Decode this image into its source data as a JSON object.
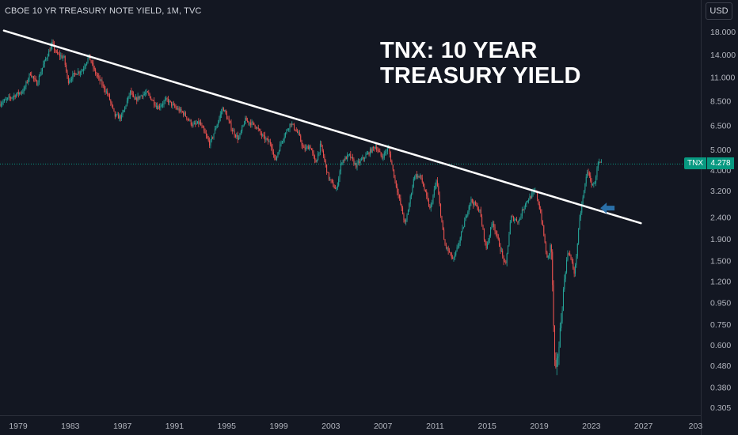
{
  "header": {
    "title": "CBOE 10 YR TREASURY NOTE YIELD, 1M, TVC"
  },
  "currency": "USD",
  "annotation": {
    "line1": "TNX: 10 YEAR",
    "line2": "TREASURY YIELD"
  },
  "ticker": "TNX",
  "last_price": "4.278",
  "colors": {
    "background": "#131722",
    "up": "#26a69a",
    "down": "#ef5350",
    "trendline": "#ffffff",
    "arrow": "#2a6fa8",
    "price_tag": "#089981",
    "axis_text": "#b2b5be"
  },
  "chart_data": {
    "type": "candlestick",
    "y_scale": "log",
    "xlim": [
      1977.6,
      2031.4
    ],
    "ylim": [
      0.28,
      21
    ],
    "x_ticks": [
      "1979",
      "1983",
      "1987",
      "1991",
      "1995",
      "1999",
      "2003",
      "2007",
      "2011",
      "2015",
      "2019",
      "2023",
      "2027",
      "203"
    ],
    "y_ticks": [
      "18.000",
      "14.000",
      "11.000",
      "8.500",
      "6.500",
      "5.000",
      "4.000",
      "3.200",
      "2.400",
      "1.900",
      "1.500",
      "1.200",
      "0.950",
      "0.750",
      "0.600",
      "0.480",
      "0.380",
      "0.305"
    ],
    "series": [
      {
        "values": [
          [
            1977.6,
            8.2
          ],
          [
            1978.5,
            8.8
          ],
          [
            1979.5,
            9.5
          ],
          [
            1980.0,
            11.5
          ],
          [
            1980.5,
            10.2
          ],
          [
            1981.0,
            12.5
          ],
          [
            1981.7,
            15.8
          ],
          [
            1982.0,
            14.2
          ],
          [
            1982.6,
            13.5
          ],
          [
            1982.9,
            10.5
          ],
          [
            1983.5,
            11.5
          ],
          [
            1984.0,
            11.8
          ],
          [
            1984.5,
            13.8
          ],
          [
            1985.0,
            11.5
          ],
          [
            1985.5,
            10.2
          ],
          [
            1986.0,
            9.0
          ],
          [
            1986.5,
            7.2
          ],
          [
            1987.0,
            7.1
          ],
          [
            1987.7,
            9.4
          ],
          [
            1988.0,
            8.5
          ],
          [
            1988.6,
            9.1
          ],
          [
            1989.0,
            9.2
          ],
          [
            1989.8,
            7.9
          ],
          [
            1990.5,
            8.6
          ],
          [
            1991.0,
            8.0
          ],
          [
            1991.8,
            7.4
          ],
          [
            1992.5,
            6.5
          ],
          [
            1993.0,
            6.7
          ],
          [
            1993.8,
            5.3
          ],
          [
            1994.8,
            7.9
          ],
          [
            1995.5,
            6.2
          ],
          [
            1996.0,
            5.6
          ],
          [
            1996.5,
            6.9
          ],
          [
            1997.3,
            6.5
          ],
          [
            1997.8,
            5.8
          ],
          [
            1998.5,
            5.3
          ],
          [
            1998.8,
            4.4
          ],
          [
            1999.3,
            5.5
          ],
          [
            2000.0,
            6.7
          ],
          [
            2000.6,
            5.9
          ],
          [
            2001.0,
            5.0
          ],
          [
            2001.5,
            5.2
          ],
          [
            2001.9,
            4.3
          ],
          [
            2002.3,
            5.3
          ],
          [
            2002.9,
            3.7
          ],
          [
            2003.5,
            3.2
          ],
          [
            2003.9,
            4.4
          ],
          [
            2004.5,
            4.7
          ],
          [
            2005.0,
            4.2
          ],
          [
            2005.5,
            4.5
          ],
          [
            2006.5,
            5.2
          ],
          [
            2007.0,
            4.6
          ],
          [
            2007.5,
            5.1
          ],
          [
            2008.0,
            3.6
          ],
          [
            2008.8,
            2.2
          ],
          [
            2009.5,
            3.8
          ],
          [
            2010.0,
            3.7
          ],
          [
            2010.7,
            2.6
          ],
          [
            2011.2,
            3.6
          ],
          [
            2011.8,
            1.8
          ],
          [
            2012.5,
            1.5
          ],
          [
            2013.0,
            1.9
          ],
          [
            2013.8,
            2.9
          ],
          [
            2014.5,
            2.6
          ],
          [
            2015.0,
            1.7
          ],
          [
            2015.5,
            2.3
          ],
          [
            2016.5,
            1.4
          ],
          [
            2016.9,
            2.4
          ],
          [
            2017.5,
            2.3
          ],
          [
            2018.0,
            2.8
          ],
          [
            2018.8,
            3.2
          ],
          [
            2019.2,
            2.5
          ],
          [
            2019.7,
            1.5
          ],
          [
            2020.0,
            1.8
          ],
          [
            2020.3,
            0.42
          ],
          [
            2020.6,
            0.6
          ],
          [
            2021.0,
            1.2
          ],
          [
            2021.3,
            1.7
          ],
          [
            2021.8,
            1.3
          ],
          [
            2022.2,
            2.4
          ],
          [
            2022.8,
            4.1
          ],
          [
            2023.0,
            3.5
          ],
          [
            2023.3,
            3.4
          ],
          [
            2023.6,
            4.3
          ],
          [
            2023.8,
            4.28
          ]
        ]
      }
    ],
    "trendline": [
      [
        1977.9,
        18.2
      ],
      [
        2026.8,
        2.25
      ]
    ],
    "arrow_at": [
      2023.2,
      2.65
    ],
    "last_value": 4.278
  }
}
